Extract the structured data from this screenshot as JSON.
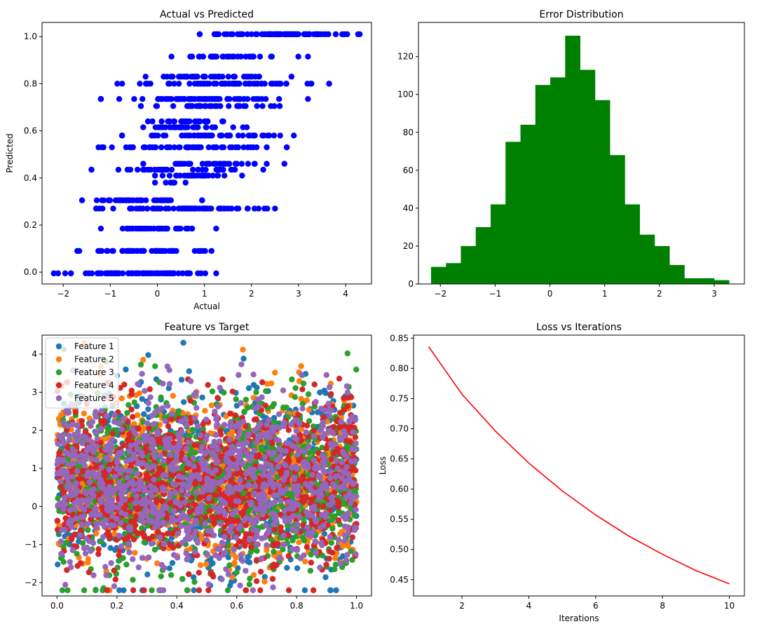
{
  "chart_data": [
    {
      "type": "scatter",
      "title": "Actual vs Predicted",
      "xlabel": "Actual",
      "ylabel": "Predicted",
      "xlim": [
        -2.45,
        4.55
      ],
      "ylim": [
        -0.05,
        1.06
      ],
      "x_ticks": [
        -2,
        -1,
        0,
        1,
        2,
        3,
        4
      ],
      "y_ticks": [
        0.0,
        0.2,
        0.4,
        0.6,
        0.8,
        1.0
      ],
      "x_tick_labels": [
        "−2",
        "−1",
        "0",
        "1",
        "2",
        "3",
        "4"
      ],
      "y_tick_labels": [
        "0.0",
        "0.2",
        "0.4",
        "0.6",
        "0.8",
        "1.0"
      ],
      "color": "#0000ff",
      "levels": [
        {
          "y": -0.005,
          "x_min": -2.2,
          "x_max": 1.25,
          "n": 90
        },
        {
          "y": 0.09,
          "x_min": -1.7,
          "x_max": 1.15,
          "n": 55
        },
        {
          "y": 0.185,
          "x_min": -1.2,
          "x_max": 1.25,
          "n": 45
        },
        {
          "y": 0.27,
          "x_min": -1.3,
          "x_max": 2.5,
          "n": 75
        },
        {
          "y": 0.305,
          "x_min": -1.6,
          "x_max": 0.95,
          "n": 45
        },
        {
          "y": 0.38,
          "x_min": -0.05,
          "x_max": 0.6,
          "n": 6
        },
        {
          "y": 0.41,
          "x_min": -0.05,
          "x_max": 1.8,
          "n": 30
        },
        {
          "y": 0.435,
          "x_min": -1.4,
          "x_max": 2.25,
          "n": 35
        },
        {
          "y": 0.46,
          "x_min": -0.3,
          "x_max": 2.7,
          "n": 35
        },
        {
          "y": 0.53,
          "x_min": -1.25,
          "x_max": 2.75,
          "n": 60
        },
        {
          "y": 0.58,
          "x_min": -0.75,
          "x_max": 2.9,
          "n": 55
        },
        {
          "y": 0.615,
          "x_min": -0.3,
          "x_max": 1.9,
          "n": 30
        },
        {
          "y": 0.64,
          "x_min": -0.2,
          "x_max": 1.4,
          "n": 25
        },
        {
          "y": 0.705,
          "x_min": -0.35,
          "x_max": 2.6,
          "n": 35
        },
        {
          "y": 0.735,
          "x_min": -1.2,
          "x_max": 3.2,
          "n": 80
        },
        {
          "y": 0.8,
          "x_min": -0.85,
          "x_max": 3.65,
          "n": 75
        },
        {
          "y": 0.83,
          "x_min": -0.25,
          "x_max": 2.85,
          "n": 45
        },
        {
          "y": 0.915,
          "x_min": 0.3,
          "x_max": 3.2,
          "n": 35
        },
        {
          "y": 1.01,
          "x_min": 0.9,
          "x_max": 4.3,
          "n": 95
        }
      ]
    },
    {
      "type": "bar",
      "subtype": "histogram",
      "title": "Error Distribution",
      "xlim": [
        -2.4,
        3.55
      ],
      "ylim": [
        0,
        138
      ],
      "x_ticks": [
        -2,
        -1,
        0,
        1,
        2,
        3
      ],
      "y_ticks": [
        0,
        20,
        40,
        60,
        80,
        100,
        120
      ],
      "x_tick_labels": [
        "−2",
        "−1",
        "0",
        "1",
        "2",
        "3"
      ],
      "y_tick_labels": [
        "0",
        "20",
        "40",
        "60",
        "80",
        "100",
        "120"
      ],
      "bin_start": -2.17,
      "bin_width": 0.272,
      "values": [
        9,
        11,
        20,
        30,
        42,
        75,
        84,
        105,
        109,
        131,
        113,
        97,
        68,
        42,
        26,
        20,
        10,
        3,
        3,
        2
      ],
      "color": "#008000"
    },
    {
      "type": "scatter",
      "title": "Feature vs Target",
      "xlabel": "",
      "ylabel": "",
      "xlim": [
        -0.05,
        1.05
      ],
      "ylim": [
        -2.35,
        4.5
      ],
      "x_ticks": [
        0.0,
        0.2,
        0.4,
        0.6,
        0.8,
        1.0
      ],
      "y_ticks": [
        -2,
        -1,
        0,
        1,
        2,
        3,
        4
      ],
      "x_tick_labels": [
        "0.0",
        "0.2",
        "0.4",
        "0.6",
        "0.8",
        "1.0"
      ],
      "y_tick_labels": [
        "−2",
        "−1",
        "0",
        "1",
        "2",
        "3",
        "4"
      ],
      "legend_position": "top-left",
      "points_per_series": 1000,
      "target_mean": 0.65,
      "target_sd": 1.1,
      "target_min": -2.2,
      "target_max": 4.3,
      "series": [
        {
          "name": "Feature 1",
          "color": "#1f77b4"
        },
        {
          "name": "Feature 2",
          "color": "#ff7f0e"
        },
        {
          "name": "Feature 3",
          "color": "#2ca02c"
        },
        {
          "name": "Feature 4",
          "color": "#d62728"
        },
        {
          "name": "Feature 5",
          "color": "#9467bd"
        }
      ]
    },
    {
      "type": "line",
      "title": "Loss vs Iterations",
      "xlabel": "Iterations",
      "ylabel": "Loss",
      "xlim": [
        0.55,
        10.45
      ],
      "ylim": [
        0.423,
        0.855
      ],
      "x_ticks": [
        2,
        4,
        6,
        8,
        10
      ],
      "y_ticks": [
        0.45,
        0.5,
        0.55,
        0.6,
        0.65,
        0.7,
        0.75,
        0.8,
        0.85
      ],
      "x_tick_labels": [
        "2",
        "4",
        "6",
        "8",
        "10"
      ],
      "y_tick_labels": [
        "0.45",
        "0.50",
        "0.55",
        "0.60",
        "0.65",
        "0.70",
        "0.75",
        "0.80",
        "0.85"
      ],
      "x": [
        1,
        2,
        3,
        4,
        5,
        6,
        7,
        8,
        9,
        10
      ],
      "y": [
        0.836,
        0.757,
        0.696,
        0.643,
        0.597,
        0.557,
        0.522,
        0.492,
        0.465,
        0.443
      ],
      "color": "#ff0000"
    }
  ]
}
